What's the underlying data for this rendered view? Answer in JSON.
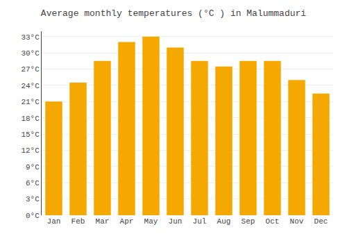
{
  "chart_data": {
    "type": "bar",
    "title": "Average monthly temperatures (°C ) in Malummaduri",
    "categories": [
      "Jan",
      "Feb",
      "Mar",
      "Apr",
      "May",
      "Jun",
      "Jul",
      "Aug",
      "Sep",
      "Oct",
      "Nov",
      "Dec"
    ],
    "values": [
      21.0,
      24.5,
      28.5,
      32.0,
      33.0,
      31.0,
      28.5,
      27.5,
      28.5,
      28.5,
      25.0,
      22.5
    ],
    "color": "#F5A800",
    "ylim": [
      0,
      34
    ],
    "yticks": [
      {
        "value": 0,
        "label": "0°C"
      },
      {
        "value": 3,
        "label": "3°C"
      },
      {
        "value": 6,
        "label": "6°C"
      },
      {
        "value": 9,
        "label": "9°C"
      },
      {
        "value": 12,
        "label": "12°C"
      },
      {
        "value": 15,
        "label": "15°C"
      },
      {
        "value": 18,
        "label": "18°C"
      },
      {
        "value": 21,
        "label": "21°C"
      },
      {
        "value": 24,
        "label": "24°C"
      },
      {
        "value": 27,
        "label": "27°C"
      },
      {
        "value": 30,
        "label": "30°C"
      },
      {
        "value": 33,
        "label": "33°C"
      }
    ],
    "grid": true
  }
}
